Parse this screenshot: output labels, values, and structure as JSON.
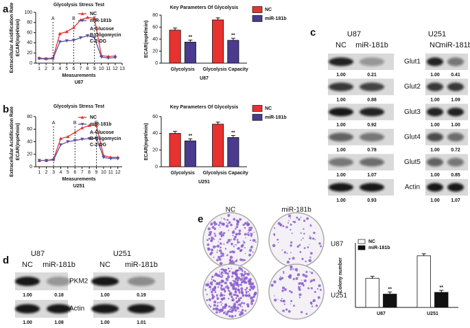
{
  "panel_labels": [
    "a",
    "b",
    "c",
    "d",
    "e"
  ],
  "chart_data": [
    {
      "type": "line",
      "title": "Glycolysis Stress Test",
      "y_label": [
        "Extracellular Acidification Rate",
        "ECAR(mpH/min)"
      ],
      "x_label": "Measurements",
      "subtitle": "U87",
      "x": [
        1,
        2,
        3,
        4,
        5,
        6,
        7,
        8,
        9,
        10,
        11,
        12
      ],
      "xlim": [
        0.5,
        13
      ],
      "xticks": [
        1,
        2,
        3,
        4,
        5,
        6,
        7,
        8,
        9,
        10,
        11,
        12,
        13
      ],
      "ylim": [
        0,
        100
      ],
      "yticks": [
        0,
        20,
        40,
        60,
        80,
        100
      ],
      "events": [
        {
          "x": 3,
          "label": "A"
        },
        {
          "x": 6,
          "label": "B"
        },
        {
          "x": 9,
          "label": "C"
        }
      ],
      "notes": [
        "A-Glucose",
        "B-Oligomycin",
        "C-2-DG"
      ],
      "series": [
        {
          "name": "NC",
          "color": "#e8322f",
          "values": [
            10,
            9,
            10,
            58,
            62,
            70,
            85,
            90,
            88,
            15,
            13,
            14
          ]
        },
        {
          "name": "miR-181b",
          "color": "#5a4fa0",
          "values": [
            9,
            8,
            9,
            42,
            44,
            45,
            50,
            54,
            50,
            12,
            10,
            11
          ]
        }
      ]
    },
    {
      "type": "bar",
      "title": "Key Parameters Of Glycolysis",
      "y_label": "ECAR(mpH/min)",
      "x_label": "U87",
      "categories": [
        "Glycolysis",
        "Glycolysis Capacity"
      ],
      "ylim": [
        0,
        80
      ],
      "yticks": [
        0,
        20,
        40,
        60,
        80
      ],
      "series": [
        {
          "name": "NC",
          "color": "#e8322f",
          "values": [
            55,
            72
          ]
        },
        {
          "name": "miR-181b",
          "color": "#4a3b8f",
          "values": [
            35,
            38
          ],
          "annotations": [
            "**",
            "**"
          ]
        }
      ]
    },
    {
      "type": "line",
      "title": "Glycolysis Stress Test",
      "y_label": [
        "Extracellular Acidification Rate",
        "ECAR(mpH/min)"
      ],
      "x_label": "Measurements",
      "subtitle": "U251",
      "x": [
        1,
        2,
        3,
        4,
        5,
        6,
        7,
        8,
        9,
        10,
        11,
        12
      ],
      "xlim": [
        0.5,
        12.6
      ],
      "xticks": [
        1,
        2,
        3,
        4,
        5,
        6,
        7,
        8,
        9,
        10,
        11,
        12
      ],
      "ylim": [
        0,
        80
      ],
      "yticks": [
        0,
        20,
        40,
        60,
        80
      ],
      "events": [
        {
          "x": 3,
          "label": "A"
        },
        {
          "x": 6,
          "label": "B"
        },
        {
          "x": 9,
          "label": "C"
        }
      ],
      "notes": [
        "A-Glucose",
        "B-Oligomycin",
        "C-2-DG"
      ],
      "series": [
        {
          "name": "NC",
          "color": "#e8322f",
          "values": [
            10,
            10,
            12,
            45,
            48,
            55,
            62,
            66,
            66,
            18,
            15,
            15
          ]
        },
        {
          "name": "miR-181b",
          "color": "#5a4fa0",
          "values": [
            10,
            10,
            11,
            35,
            40,
            42,
            44,
            45,
            46,
            15,
            13,
            13
          ]
        }
      ]
    },
    {
      "type": "bar",
      "title": "Key Parameters Of Glycolysis",
      "y_label": "ECAR(mpH/min)",
      "x_label": "U251",
      "categories": [
        "Glycolysis",
        "Glycolysis Capacity"
      ],
      "ylim": [
        0,
        60
      ],
      "yticks": [
        0,
        20,
        40,
        60
      ],
      "series": [
        {
          "name": "NC",
          "color": "#e8322f",
          "values": [
            40,
            51
          ]
        },
        {
          "name": "miR-181b",
          "color": "#4a3b8f",
          "values": [
            31,
            35
          ],
          "annotations": [
            "**",
            "**"
          ]
        }
      ]
    },
    {
      "type": "bar",
      "y_label": "Colony number",
      "categories": [
        "U87",
        "U251"
      ],
      "ylim": [
        0,
        300
      ],
      "legend": "inside",
      "series": [
        {
          "name": "NC",
          "color": "#ffffff",
          "values": [
            135,
            240
          ]
        },
        {
          "name": "miR-181b",
          "color": "#111111",
          "values": [
            62,
            70
          ],
          "annotations": [
            "**",
            "**"
          ]
        }
      ]
    }
  ],
  "blot_c": {
    "cell_lines": [
      "U87",
      "U251"
    ],
    "lanes": [
      "NC",
      "miR-181b"
    ],
    "rows": [
      {
        "name": "Glut1",
        "values": [
          "1.00",
          "0.21",
          "1.00",
          "0.41"
        ]
      },
      {
        "name": "Glut2",
        "values": [
          "1.00",
          "0.88",
          "1.00",
          "1.09"
        ]
      },
      {
        "name": "Glut3",
        "values": [
          "1.00",
          "0.92",
          "1.00",
          "1.00"
        ]
      },
      {
        "name": "Glut4",
        "values": [
          "1.00",
          "0.78",
          "1.00",
          "0.72"
        ]
      },
      {
        "name": "Glut5",
        "values": [
          "1.00",
          "1.07",
          "1.00",
          "0.85"
        ]
      },
      {
        "name": "Actin",
        "values": [
          "1.00",
          "0.93",
          "1.00",
          "1.07"
        ]
      }
    ]
  },
  "blot_d": {
    "cell_lines": [
      "U87",
      "U251"
    ],
    "lanes": [
      "NC",
      "miR-181b"
    ],
    "rows": [
      {
        "name": "PKM2",
        "values": [
          "1.00",
          "0.18",
          "1.00",
          "0.19"
        ]
      },
      {
        "name": "Actin",
        "values": [
          "1.00",
          "1.08",
          "1.00",
          "1.01"
        ]
      }
    ]
  },
  "plates_e": {
    "columns": [
      "NC",
      "miR-181b"
    ],
    "rows": [
      "U87",
      "U251"
    ]
  }
}
